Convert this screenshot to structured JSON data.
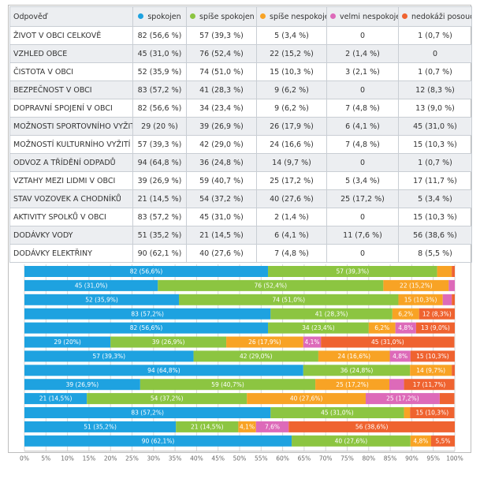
{
  "header": {
    "question": "Odpověď",
    "columns": [
      {
        "label": "spokojen",
        "color": "#1ea2e0"
      },
      {
        "label": "spíše spokojen",
        "color": "#8cc541"
      },
      {
        "label": "spíše nespokojen",
        "color": "#f8a325"
      },
      {
        "label": "velmi nespokojen",
        "color": "#dd6ab9"
      },
      {
        "label": "nedokáži posoudit",
        "color": "#ef6330"
      }
    ]
  },
  "rows": [
    {
      "label": "ŽIVOT V OBCI CELKOVĚ",
      "cells": [
        "82 (56,6 %)",
        "57 (39,3 %)",
        "5 (3,4 %)",
        "0",
        "1 (0,7 %)"
      ]
    },
    {
      "label": "VZHLED OBCE",
      "cells": [
        "45 (31,0 %)",
        "76 (52,4 %)",
        "22 (15,2 %)",
        "2 (1,4 %)",
        "0"
      ]
    },
    {
      "label": "ČISTOTA V OBCI",
      "cells": [
        "52 (35,9 %)",
        "74 (51,0 %)",
        "15 (10,3 %)",
        "3 (2,1 %)",
        "1 (0,7 %)"
      ]
    },
    {
      "label": "BEZPEČNOST V OBCI",
      "cells": [
        "83 (57,2 %)",
        "41 (28,3 %)",
        "9 (6,2 %)",
        "0",
        "12 (8,3 %)"
      ]
    },
    {
      "label": "DOPRAVNÍ SPOJENÍ V OBCI",
      "cells": [
        "82 (56,6 %)",
        "34 (23,4 %)",
        "9 (6,2 %)",
        "7 (4,8 %)",
        "13 (9,0 %)"
      ]
    },
    {
      "label": "MOŽNOSTI SPORTOVNÍHO VYŽITÍ",
      "cells": [
        "29 (20 %)",
        "39 (26,9 %)",
        "26 (17,9 %)",
        "6 (4,1 %)",
        "45 (31,0 %)"
      ]
    },
    {
      "label": "MOŽNOSTÍ KULTURNÍHO VYŽITÍ",
      "cells": [
        "57 (39,3 %)",
        "42 (29,0 %)",
        "24 (16,6 %)",
        "7 (4,8 %)",
        "15 (10,3 %)"
      ]
    },
    {
      "label": "ODVOZ A TŘÍDĚNÍ ODPADŮ",
      "cells": [
        "94 (64,8 %)",
        "36 (24,8 %)",
        "14 (9,7 %)",
        "0",
        "1 (0,7 %)"
      ]
    },
    {
      "label": "VZTAHY MEZI LIDMI V OBCI",
      "cells": [
        "39 (26,9 %)",
        "59 (40,7 %)",
        "25 (17,2 %)",
        "5 (3,4 %)",
        "17 (11,7 %)"
      ]
    },
    {
      "label": "STAV VOZOVEK A CHODNÍKŮ",
      "cells": [
        "21 (14,5 %)",
        "54 (37,2 %)",
        "40 (27,6 %)",
        "25 (17,2 %)",
        "5 (3,4 %)"
      ]
    },
    {
      "label": "AKTIVITY SPOLKŮ V OBCI",
      "cells": [
        "83 (57,2 %)",
        "45 (31,0 %)",
        "2 (1,4 %)",
        "0",
        "15 (10,3 %)"
      ]
    },
    {
      "label": "DODÁVKY VODY",
      "cells": [
        "51 (35,2 %)",
        "21 (14,5 %)",
        "6 (4,1 %)",
        "11 (7,6 %)",
        "56 (38,6 %)"
      ]
    },
    {
      "label": "DODÁVKY ELEKTŘINY",
      "cells": [
        "90 (62,1 %)",
        "40 (27,6 %)",
        "7 (4,8 %)",
        "0",
        "8 (5,5 %)"
      ]
    }
  ],
  "chart_data": {
    "type": "bar",
    "orientation": "horizontal",
    "stacked": true,
    "categories": [
      "ŽIVOT V OBCI CELKOVĚ",
      "VZHLED OBCE",
      "ČISTOTA V OBCI",
      "BEZPEČNOST V OBCI",
      "DOPRAVNÍ SPOJENÍ V OBCI",
      "MOŽNOSTI SPORTOVNÍHO VYŽITÍ",
      "MOŽNOSTÍ KULTURNÍHO VYŽITÍ",
      "ODVOZ A TŘÍDĚNÍ ODPADŮ",
      "VZTAHY MEZI LIDMI V OBCI",
      "STAV VOZOVEK A CHODNÍKŮ",
      "AKTIVITY SPOLKŮ V OBCI",
      "DODÁVKY VODY",
      "DODÁVKY ELEKTŘINY"
    ],
    "xlim": [
      0,
      100
    ],
    "x_ticks": [
      "0%",
      "5%",
      "10%",
      "15%",
      "20%",
      "25%",
      "30%",
      "35%",
      "40%",
      "45%",
      "50%",
      "55%",
      "60%",
      "65%",
      "70%",
      "75%",
      "80%",
      "85%",
      "90%",
      "95%",
      "100%"
    ],
    "grid": true,
    "series": [
      {
        "name": "spokojen",
        "color": "#1ea2e0",
        "values": [
          56.6,
          31.0,
          35.9,
          57.2,
          56.6,
          20,
          39.3,
          64.8,
          26.9,
          14.5,
          57.2,
          35.2,
          62.1
        ],
        "labels": [
          "82 (56,6%)",
          "45 (31,0%)",
          "52 (35,9%)",
          "83 (57,2%)",
          "82 (56,6%)",
          "29 (20%)",
          "57 (39,3%)",
          "94 (64,8%)",
          "39 (26,9%)",
          "21 (14,5%)",
          "83 (57,2%)",
          "51 (35,2%)",
          "90 (62,1%)"
        ]
      },
      {
        "name": "spíše spokojen",
        "color": "#8cc541",
        "values": [
          39.3,
          52.4,
          51.0,
          28.3,
          23.4,
          26.9,
          29.0,
          24.8,
          40.7,
          37.2,
          31.0,
          14.5,
          27.6
        ],
        "labels": [
          "57 (39,3%)",
          "76 (52,4%)",
          "74 (51,0%)",
          "41 (28,3%)",
          "34 (23,4%)",
          "39 (26,9%)",
          "42 (29,0%)",
          "36 (24,8%)",
          "59 (40,7%)",
          "54 (37,2%)",
          "45 (31,0%)",
          "21 (14,5%)",
          "40 (27,6%)"
        ]
      },
      {
        "name": "spíše nespokojen",
        "color": "#f8a325",
        "values": [
          3.4,
          15.2,
          10.3,
          6.2,
          6.2,
          17.9,
          16.6,
          9.7,
          17.2,
          27.6,
          1.4,
          4.1,
          4.8
        ],
        "labels": [
          "",
          "22 (15,2%)",
          "15 (10,3%)",
          "6,2%",
          "6,2%",
          "26 (17,9%)",
          "24 (16,6%)",
          "14 (9,7%)",
          "25 (17,2%)",
          "40 (27,6%)",
          "",
          "4,1%",
          "4,8%"
        ]
      },
      {
        "name": "velmi nespokojen",
        "color": "#dd6ab9",
        "values": [
          0,
          1.4,
          2.1,
          0,
          4.8,
          4.1,
          4.8,
          0,
          3.4,
          17.2,
          0,
          7.6,
          0
        ],
        "labels": [
          "",
          "",
          "",
          "",
          "4,8%",
          "4,1%",
          "4,8%",
          "",
          "",
          "25 (17,2%)",
          "",
          "7,6%",
          ""
        ]
      },
      {
        "name": "nedokáži posoudit",
        "color": "#ef6330",
        "values": [
          0.7,
          0,
          0.7,
          8.3,
          9.0,
          31.0,
          10.3,
          0.7,
          11.7,
          3.4,
          10.3,
          38.6,
          5.5
        ],
        "labels": [
          "",
          "",
          "",
          "12 (8,3%)",
          "13 (9,0%)",
          "45 (31,0%)",
          "15 (10,3%)",
          "",
          "17 (11,7%)",
          "",
          "15 (10,3%)",
          "56 (38,6%)",
          "5,5%"
        ]
      }
    ]
  }
}
